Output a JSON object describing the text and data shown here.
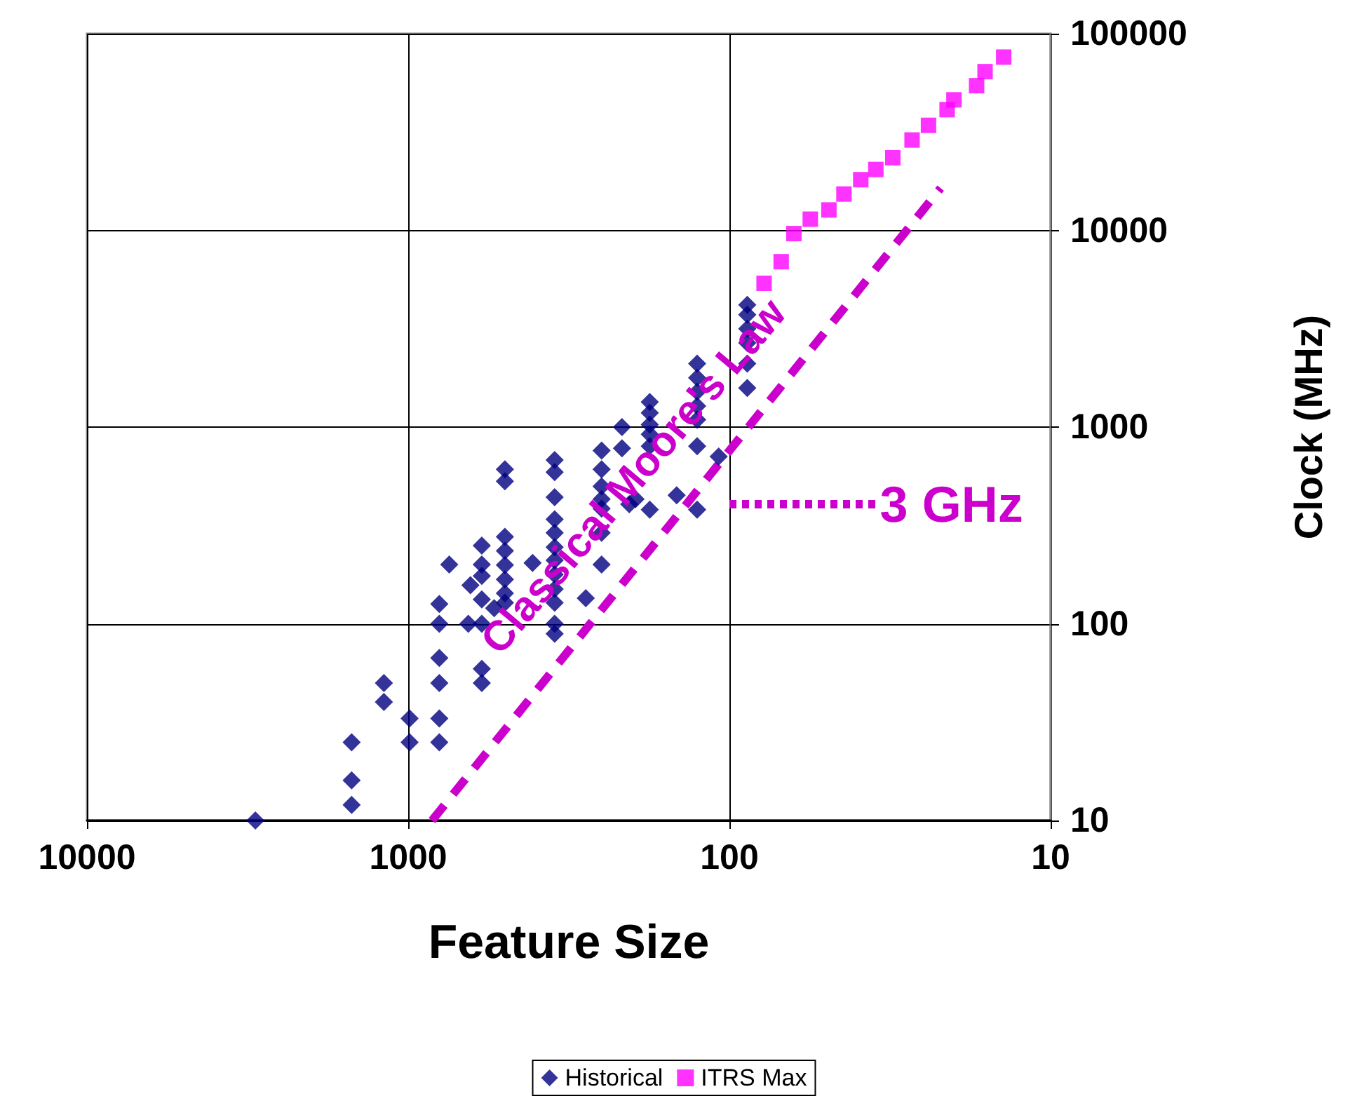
{
  "chart_data": {
    "type": "scatter",
    "xlabel": "Feature Size",
    "ylabel": "Clock (MHz)",
    "xlim": [
      10000,
      10
    ],
    "xticks": [
      10000,
      1000,
      100,
      10
    ],
    "ylim": [
      10,
      100000
    ],
    "yticks": [
      10,
      100,
      1000,
      10000,
      100000
    ],
    "log": "xy",
    "grid": true,
    "legend": "bottom",
    "series": [
      {
        "name": "Historical",
        "marker": "diamond",
        "color": "#000080",
        "x": [
          2990,
          1500,
          1500,
          1500,
          1190,
          1190,
          990,
          990,
          800,
          800,
          800,
          800,
          800,
          800,
          745,
          640,
          650,
          590,
          590,
          590,
          590,
          590,
          590,
          590,
          540,
          500,
          500,
          500,
          500,
          500,
          500,
          500,
          500,
          410,
          350,
          350,
          350,
          350,
          350,
          350,
          350,
          350,
          350,
          350,
          350,
          350,
          280,
          250,
          250,
          250,
          250,
          250,
          250,
          250,
          216,
          216,
          205,
          196,
          177,
          177,
          177,
          177,
          177,
          177,
          146,
          126,
          126,
          126,
          126,
          126,
          126,
          126,
          108,
          88,
          88,
          88,
          88,
          88,
          88
        ],
        "values": [
          10,
          25,
          16,
          12,
          50,
          40,
          33,
          25,
          126,
          100,
          67,
          50,
          33,
          25,
          200,
          157,
          100,
          250,
          200,
          175,
          133,
          100,
          59,
          50,
          120,
          610,
          530,
          277,
          235,
          199,
          168,
          143,
          128,
          204,
          680,
          590,
          440,
          340,
          290,
          245,
          210,
          178,
          150,
          128,
          100,
          89,
          135,
          760,
          610,
          500,
          430,
          385,
          290,
          200,
          1000,
          780,
          405,
          430,
          1340,
          1180,
          1030,
          920,
          800,
          380,
          450,
          2100,
          1780,
          1510,
          1280,
          1090,
          800,
          380,
          708,
          4180,
          3730,
          3160,
          2680,
          2100,
          1580
        ]
      },
      {
        "name": "ITRS Max",
        "marker": "square",
        "color": "#ff00ff",
        "x": [
          78,
          69,
          63,
          56,
          49,
          44,
          39,
          35,
          31,
          27,
          24,
          21,
          20,
          17,
          16,
          14
        ],
        "values": [
          5380,
          6930,
          9630,
          11400,
          12700,
          15300,
          18100,
          20400,
          23400,
          28800,
          34200,
          41100,
          46100,
          54400,
          64100,
          76000
        ]
      },
      {
        "type": "line",
        "line_style": "dashed",
        "marker": "none",
        "color": "#cc00cc",
        "x": [
          843,
          22
        ],
        "values": [
          10,
          16400
        ]
      },
      {
        "type": "line",
        "line_style": "dotted",
        "marker": "none",
        "color": "#cc00cc",
        "x": [
          100,
          35
        ],
        "values": [
          405,
          405
        ]
      }
    ],
    "annotations": [
      "Classical Moore's Law",
      {
        "text": "3 GHz",
        "x": 34,
        "y": 405
      }
    ]
  }
}
